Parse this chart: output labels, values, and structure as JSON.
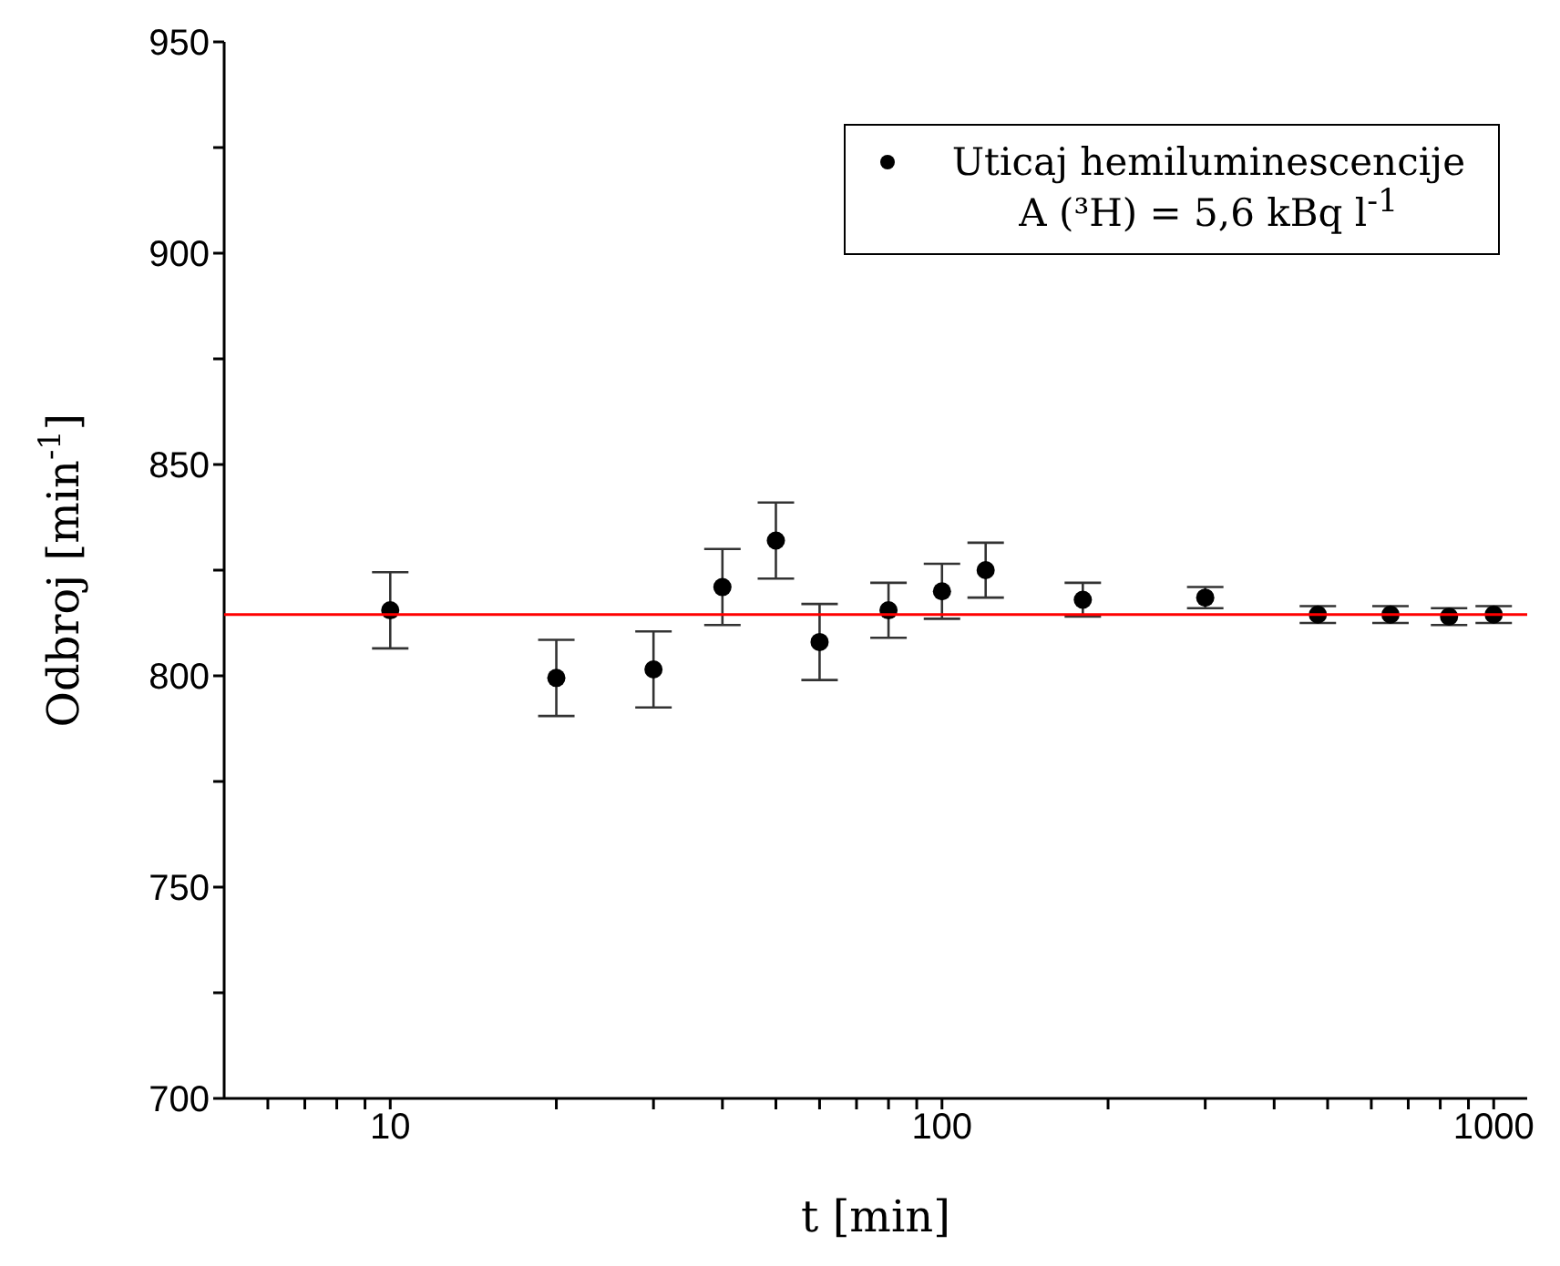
{
  "chart_data": {
    "type": "scatter",
    "xlabel": "t [min]",
    "ylabel": "Odbroj [min$^{-1}$]",
    "log": "x",
    "xlim": [
      5,
      1150
    ],
    "ylim": [
      700,
      950
    ],
    "xticks": [
      {
        "value": 6,
        "label": null
      },
      {
        "value": 7,
        "label": null
      },
      {
        "value": 8,
        "label": null
      },
      {
        "value": 9,
        "label": null
      },
      10,
      {
        "value": 20,
        "label": null
      },
      {
        "value": 30,
        "label": null
      },
      {
        "value": 40,
        "label": null
      },
      {
        "value": 50,
        "label": null
      },
      {
        "value": 60,
        "label": null
      },
      {
        "value": 70,
        "label": null
      },
      {
        "value": 80,
        "label": null
      },
      {
        "value": 90,
        "label": null
      },
      100,
      {
        "value": 200,
        "label": null
      },
      {
        "value": 300,
        "label": null
      },
      {
        "value": 400,
        "label": null
      },
      {
        "value": 500,
        "label": null
      },
      {
        "value": 600,
        "label": null
      },
      {
        "value": 700,
        "label": null
      },
      {
        "value": 800,
        "label": null
      },
      {
        "value": 900,
        "label": null
      },
      1000
    ],
    "yticks": [
      700,
      {
        "value": 725,
        "label": null
      },
      750,
      {
        "value": 775,
        "label": null
      },
      800,
      {
        "value": 825,
        "label": null
      },
      850,
      {
        "value": 875,
        "label": null
      },
      900,
      {
        "value": 925,
        "label": null
      },
      950
    ],
    "legend": "top right",
    "grid": false,
    "annotations": [
      "A (³H) =  5,6 kBq l$^{-1}$"
    ],
    "series": [
      {
        "name": "Uticaj hemiluminescencije",
        "color": "#000000",
        "marker": "circle",
        "x": [
          10,
          20,
          30,
          40,
          50,
          60,
          80,
          100,
          120,
          180,
          300,
          480,
          650,
          830,
          1000
        ],
        "values": [
          815.5,
          799.5,
          801.5,
          821,
          832,
          808,
          815.5,
          820,
          825,
          818,
          818.5,
          814.5,
          814.5,
          814,
          814.5
        ],
        "errors": [
          9,
          9,
          9,
          9,
          9,
          9,
          6.5,
          6.5,
          6.5,
          4,
          2.5,
          2,
          2,
          2,
          2
        ]
      },
      {
        "type": "line",
        "color": "#ff0000",
        "marker": "none",
        "x": [
          5,
          1150
        ],
        "values": [
          814.5,
          814.5
        ]
      }
    ]
  }
}
